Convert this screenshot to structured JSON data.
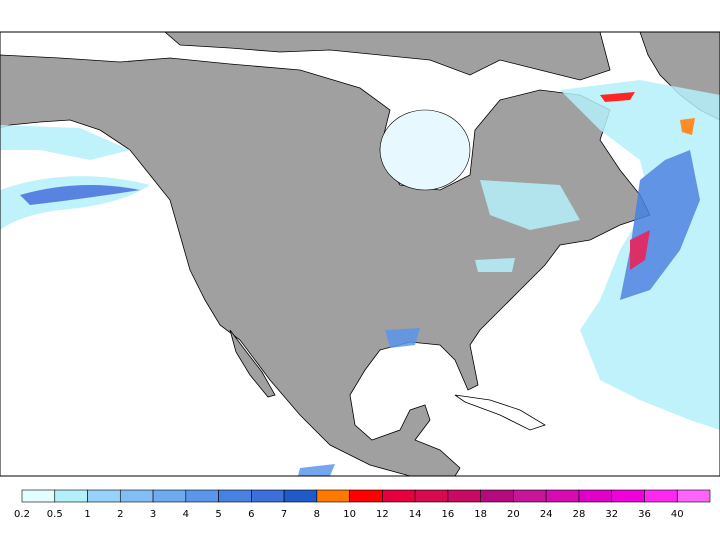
{
  "colorbar": {
    "labels": [
      "0.2",
      "0.5",
      "1",
      "2",
      "3",
      "4",
      "5",
      "6",
      "7",
      "8",
      "10",
      "12",
      "14",
      "16",
      "18",
      "20",
      "24",
      "28",
      "32",
      "36",
      "40"
    ],
    "colors": [
      "#e1ffff",
      "#b4f0fa",
      "#96d2fa",
      "#82bef5",
      "#6eaaf0",
      "#5a96eb",
      "#4682e1",
      "#3c6edc",
      "#1e5ac8",
      "#ff7800",
      "#ff0000",
      "#e6003c",
      "#d70a50",
      "#c80a64",
      "#b40a7d",
      "#c8149b",
      "#d70ab4",
      "#e100c8",
      "#f000dc",
      "#ff28f0",
      "#ff64ff"
    ]
  }
}
